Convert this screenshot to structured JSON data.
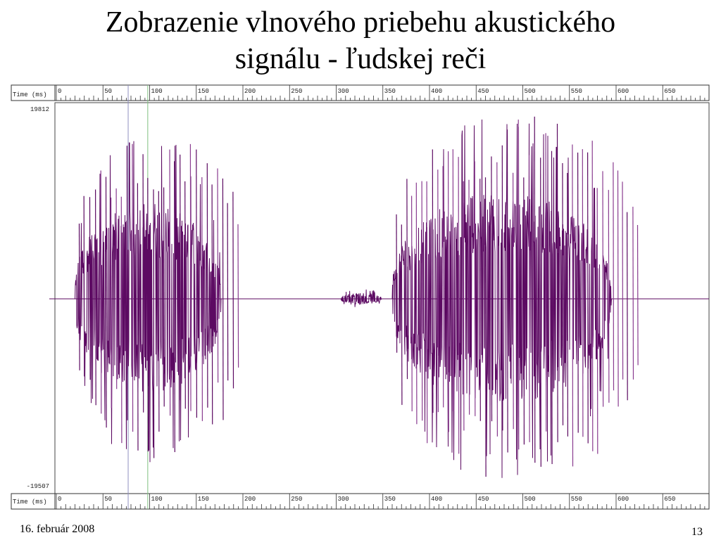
{
  "slide": {
    "title_line1": "Zobrazenie vlnového priebehu akustického",
    "title_line2": "signálu - ľudskej reči",
    "date": "16. február 2008",
    "page_number": "13"
  },
  "chart_data": {
    "type": "line",
    "xlabel": "Time (ms)",
    "xlim": [
      0,
      695
    ],
    "ylim": [
      -19507,
      19812
    ],
    "y_tick_labels": [
      "19812",
      "-19507"
    ],
    "x_ticks": [
      0,
      50,
      100,
      150,
      200,
      250,
      300,
      350,
      400,
      450,
      500,
      550,
      600,
      650
    ],
    "markers_ms": [
      {
        "t": 77,
        "color": "#9090c0"
      },
      {
        "t": 98,
        "color": "#80c080"
      }
    ],
    "segments": [
      {
        "start_ms": 20,
        "end_ms": 200,
        "peak_envelope": 0.85
      },
      {
        "start_ms": 305,
        "end_ms": 355,
        "peak_envelope": 0.05
      },
      {
        "start_ms": 360,
        "end_ms": 630,
        "peak_envelope": 0.95
      }
    ],
    "colors": {
      "waveform": "#5c0a62",
      "waveform_light": "#8a3c90",
      "axis": "#333333",
      "ruler_text": "#202020"
    }
  }
}
